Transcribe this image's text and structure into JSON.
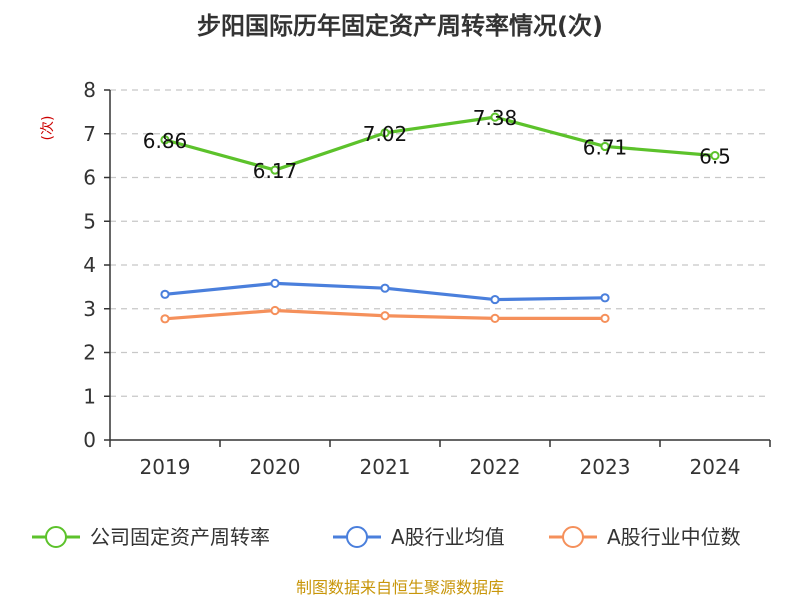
{
  "chart_data": {
    "type": "line",
    "title": "步阳国际历年固定资产周转率情况(次)",
    "ylabel": "(次)",
    "categories": [
      "2019",
      "2020",
      "2021",
      "2022",
      "2023",
      "2024"
    ],
    "ylim": [
      0,
      8
    ],
    "yticks": [
      "0",
      "1",
      "2",
      "3",
      "4",
      "5",
      "6",
      "7",
      "8"
    ],
    "grid": true,
    "legend_position": "bottom",
    "series": [
      {
        "name": "公司固定资产周转率",
        "color": "#5cc22b",
        "values": [
          6.86,
          6.17,
          7.02,
          7.38,
          6.71,
          6.5
        ],
        "labels": [
          "6.86",
          "6.17",
          "7.02",
          "7.38",
          "6.71",
          "6.5"
        ]
      },
      {
        "name": "A股行业均值",
        "color": "#4a7fdc",
        "values": [
          3.33,
          3.58,
          3.47,
          3.21,
          3.25,
          null
        ]
      },
      {
        "name": "A股行业中位数",
        "color": "#f5905b",
        "values": [
          2.77,
          2.96,
          2.84,
          2.78,
          2.78,
          null
        ]
      }
    ]
  },
  "source": "制图数据来自恒生聚源数据库"
}
